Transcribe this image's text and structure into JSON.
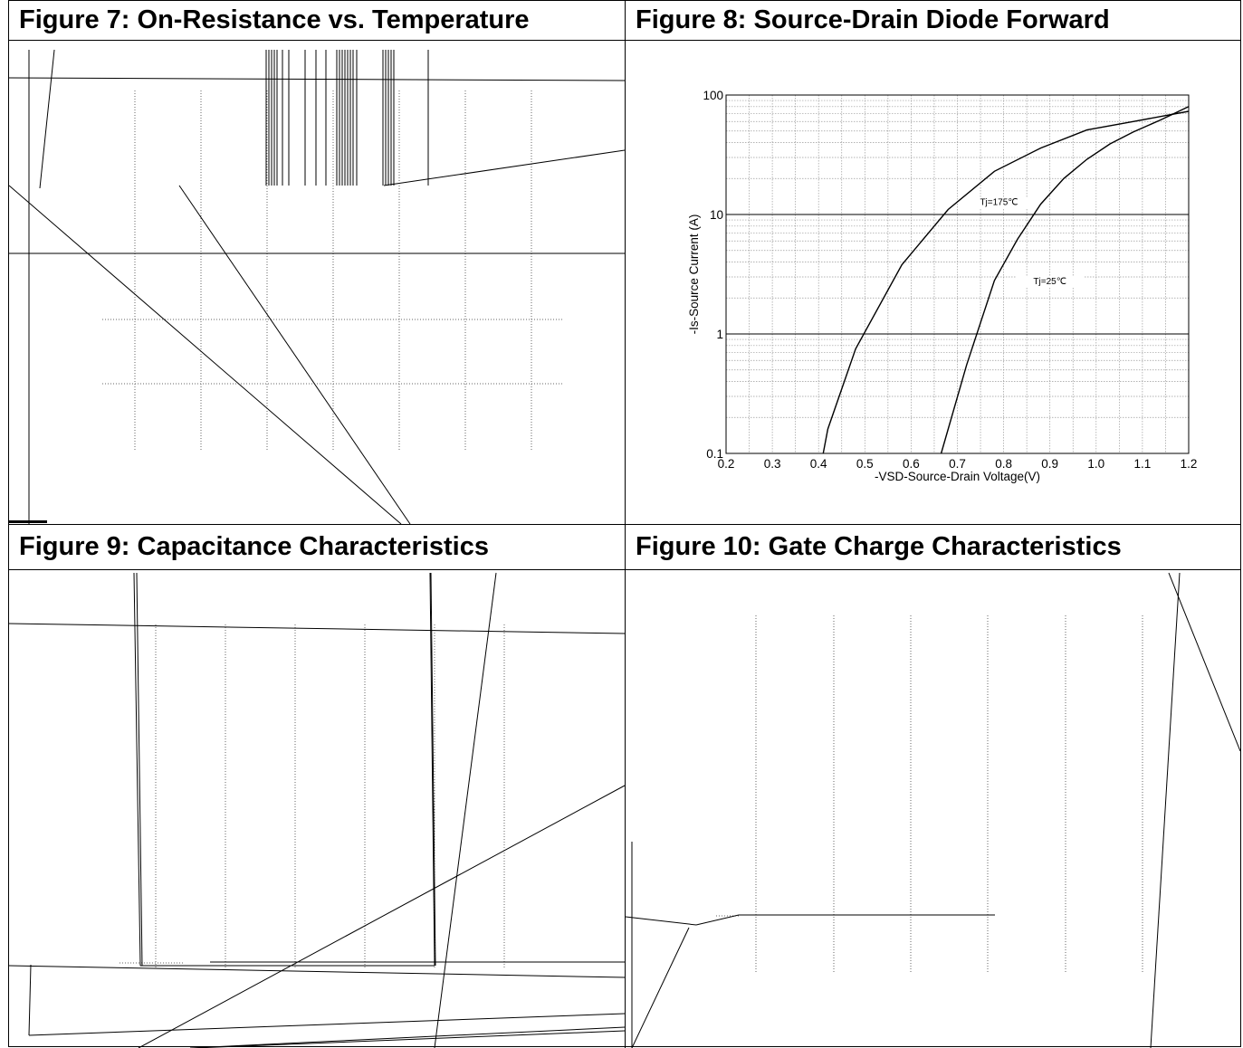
{
  "figures": {
    "fig7": {
      "title": "Figure 7: On-Resistance vs. Temperature"
    },
    "fig8": {
      "title": "Figure 8: Source-Drain Diode Forward"
    },
    "fig9": {
      "title": "Figure 9: Capacitance Characteristics"
    },
    "fig10": {
      "title": "Figure 10: Gate Charge Characteristics"
    }
  },
  "chart_data": [
    {
      "type": "line",
      "title": "Figure 8: Source-Drain Diode Forward",
      "xlabel": "-VSD-Source-Drain Voltage(V)",
      "ylabel": "-Is-Source Current (A)",
      "xlim": [
        0.2,
        1.2
      ],
      "ylim": [
        0.1,
        100
      ],
      "yscale": "log",
      "xticks": [
        "0.2",
        "0.3",
        "0.4",
        "0.5",
        "0.6",
        "0.7",
        "0.8",
        "0.9",
        "1.0",
        "1.1",
        "1.2"
      ],
      "yticks": [
        "0.1",
        "1",
        "10",
        "100"
      ],
      "grid": true,
      "series": [
        {
          "name": "Tj=175℃",
          "x": [
            0.41,
            0.42,
            0.48,
            0.58,
            0.68,
            0.78,
            0.88,
            0.98,
            1.08,
            1.2
          ],
          "y": [
            0.1,
            0.16,
            0.75,
            3.8,
            11,
            23,
            36,
            51,
            60,
            73
          ]
        },
        {
          "name": "Tj=25℃",
          "x": [
            0.665,
            0.72,
            0.78,
            0.83,
            0.88,
            0.93,
            0.98,
            1.03,
            1.08,
            1.14,
            1.2
          ],
          "y": [
            0.1,
            0.55,
            2.8,
            6.2,
            12.2,
            20,
            29,
            39,
            49,
            62,
            80
          ]
        }
      ]
    }
  ]
}
